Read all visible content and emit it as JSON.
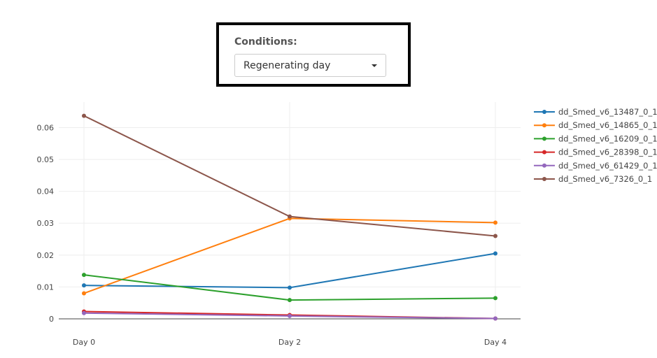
{
  "controls": {
    "conditions_label": "Conditions:",
    "selected_condition": "Regenerating day"
  },
  "chart_data": {
    "type": "line",
    "categories": [
      "Day 0",
      "Day 2",
      "Day 4"
    ],
    "ylim": [
      0,
      0.068
    ],
    "yticks": [
      0,
      0.01,
      0.02,
      0.03,
      0.04,
      0.05,
      0.06
    ],
    "ytick_labels": [
      "0",
      "0.01",
      "0.02",
      "0.03",
      "0.04",
      "0.05",
      "0.06"
    ],
    "grid": true,
    "legend_position": "top-right",
    "series": [
      {
        "name": "dd_Smed_v6_13487_0_1",
        "color": "#1f77b4",
        "values": [
          0.0105,
          0.0098,
          0.0205
        ]
      },
      {
        "name": "dd_Smed_v6_14865_0_1",
        "color": "#ff7f0e",
        "values": [
          0.008,
          0.0315,
          0.0302
        ]
      },
      {
        "name": "dd_Smed_v6_16209_0_1",
        "color": "#2ca02c",
        "values": [
          0.0138,
          0.0059,
          0.0065
        ]
      },
      {
        "name": "dd_Smed_v6_28398_0_1",
        "color": "#d62728",
        "values": [
          0.0023,
          0.0012,
          0.0001
        ]
      },
      {
        "name": "dd_Smed_v6_61429_0_1",
        "color": "#9467bd",
        "values": [
          0.0018,
          0.0009,
          0.0001
        ]
      },
      {
        "name": "dd_Smed_v6_7326_0_1",
        "color": "#8c564b",
        "values": [
          0.0637,
          0.0321,
          0.026
        ]
      }
    ]
  }
}
